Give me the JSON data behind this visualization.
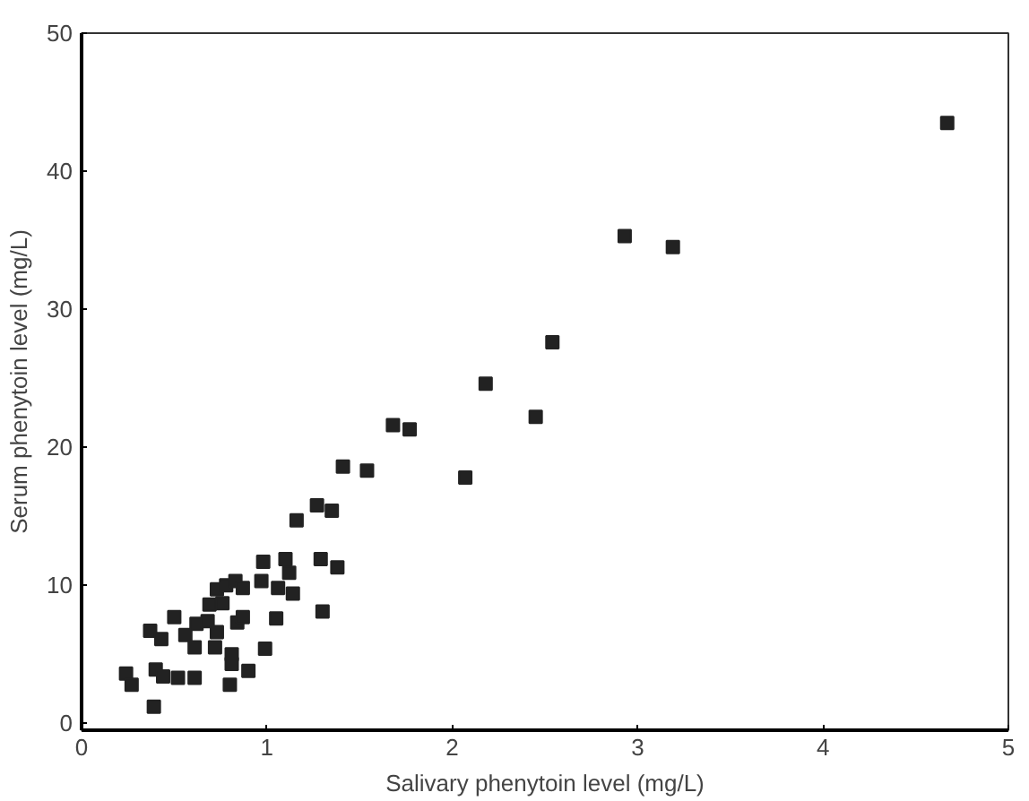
{
  "chart_data": {
    "type": "scatter",
    "xlabel": "Salivary phenytoin level (mg/L)",
    "ylabel": "Serum phenytoin level (mg/L)",
    "xlim": [
      0,
      5
    ],
    "ylim": [
      -0.5,
      50
    ],
    "xticks": [
      0,
      1,
      2,
      3,
      4,
      5
    ],
    "yticks": [
      0,
      10,
      20,
      30,
      40,
      50
    ],
    "grid": false,
    "marker": "square",
    "series": [
      {
        "color": "#222222",
        "x": [
          0.24,
          0.27,
          0.39,
          0.4,
          0.44,
          0.52,
          0.61,
          0.37,
          0.43,
          0.5,
          0.56,
          0.62,
          0.68,
          0.61,
          0.72,
          0.73,
          0.69,
          0.73,
          0.78,
          0.83,
          0.87,
          0.76,
          0.84,
          0.87,
          0.81,
          0.81,
          0.9,
          0.8,
          0.99,
          0.98,
          0.97,
          1.05,
          1.06,
          1.1,
          1.12,
          1.14,
          1.16,
          1.29,
          1.38,
          1.3,
          1.27,
          1.35,
          1.41,
          1.54,
          2.93,
          3.19,
          2.54,
          2.18,
          2.45,
          1.68,
          1.77,
          2.07,
          4.67
        ],
        "values": [
          3.6,
          2.8,
          1.2,
          3.9,
          3.4,
          3.3,
          3.3,
          6.7,
          6.1,
          7.7,
          6.4,
          7.2,
          7.4,
          5.5,
          5.5,
          6.6,
          8.6,
          9.7,
          10.0,
          10.3,
          9.8,
          8.7,
          7.3,
          7.7,
          5.0,
          4.3,
          3.8,
          2.8,
          5.4,
          11.7,
          10.3,
          7.6,
          9.8,
          11.9,
          10.9,
          9.4,
          14.7,
          11.9,
          11.3,
          8.1,
          15.8,
          15.4,
          18.6,
          18.3,
          35.3,
          34.5,
          27.6,
          24.6,
          22.2,
          21.6,
          21.3,
          17.8,
          43.5
        ]
      }
    ]
  }
}
